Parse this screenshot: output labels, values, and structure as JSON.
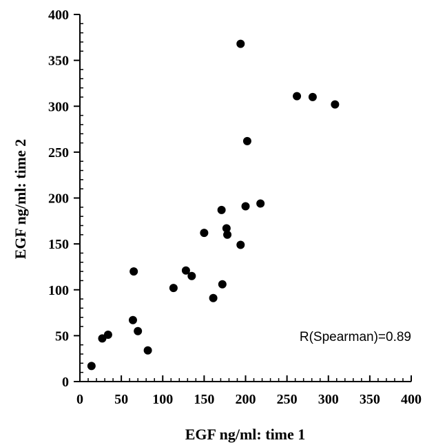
{
  "chart_data": {
    "type": "scatter",
    "title": "",
    "xlabel": "EGF ng/ml: time 1",
    "ylabel": "EGF ng/ml: time 2",
    "xlim": [
      0,
      400
    ],
    "ylim": [
      0,
      400
    ],
    "xticks": [
      0,
      50,
      100,
      150,
      200,
      250,
      300,
      350,
      400
    ],
    "yticks": [
      0,
      50,
      100,
      150,
      200,
      250,
      300,
      350,
      400
    ],
    "grid": false,
    "annotation": "R(Spearman)=0.89",
    "marker_color": "#000000",
    "points": [
      {
        "x": 14,
        "y": 17
      },
      {
        "x": 27,
        "y": 47
      },
      {
        "x": 34,
        "y": 51
      },
      {
        "x": 64,
        "y": 67
      },
      {
        "x": 65,
        "y": 120
      },
      {
        "x": 70,
        "y": 55
      },
      {
        "x": 82,
        "y": 34
      },
      {
        "x": 113,
        "y": 102
      },
      {
        "x": 128,
        "y": 121
      },
      {
        "x": 135,
        "y": 115
      },
      {
        "x": 150,
        "y": 162
      },
      {
        "x": 161,
        "y": 91
      },
      {
        "x": 171,
        "y": 187
      },
      {
        "x": 172,
        "y": 106
      },
      {
        "x": 177,
        "y": 167
      },
      {
        "x": 178,
        "y": 160
      },
      {
        "x": 194,
        "y": 149
      },
      {
        "x": 194,
        "y": 368
      },
      {
        "x": 200,
        "y": 191
      },
      {
        "x": 202,
        "y": 262
      },
      {
        "x": 218,
        "y": 194
      },
      {
        "x": 262,
        "y": 311
      },
      {
        "x": 281,
        "y": 310
      },
      {
        "x": 308,
        "y": 302
      }
    ]
  }
}
